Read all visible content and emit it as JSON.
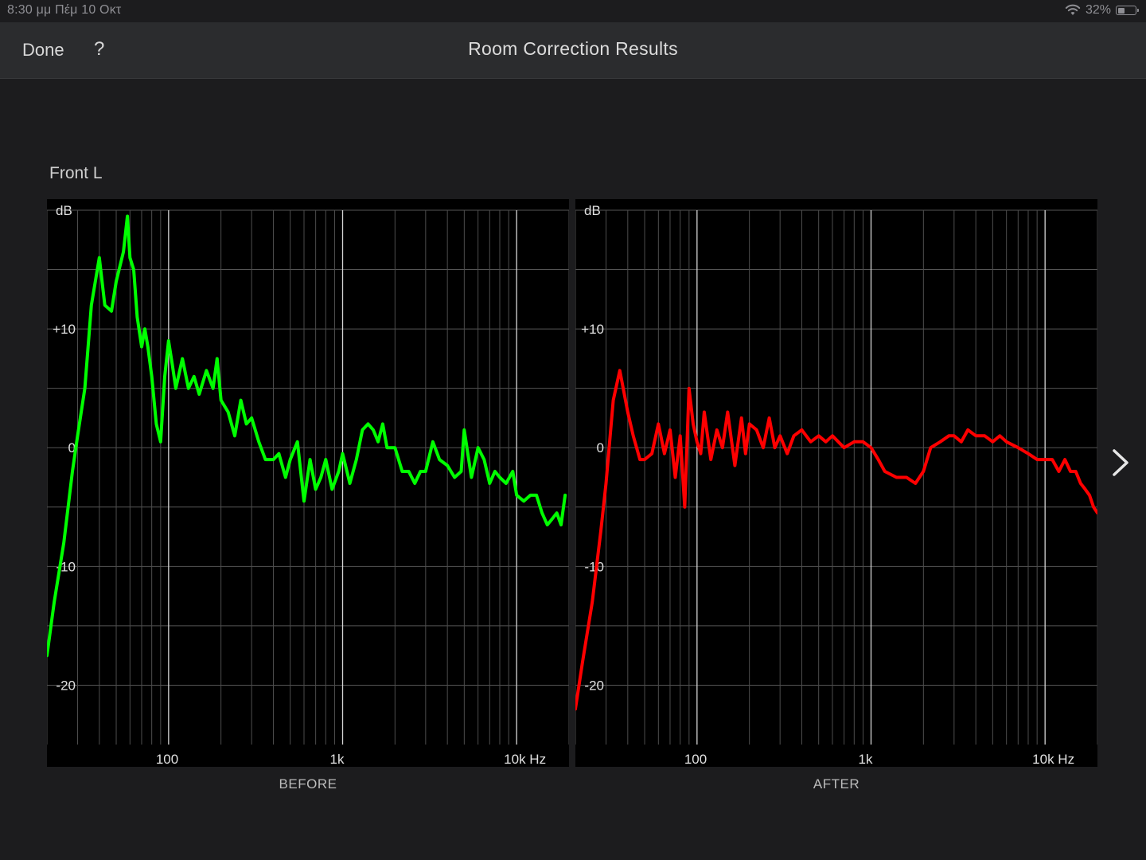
{
  "status_bar": {
    "time_date": "8:30 μμ  Πέμ 10 Οκτ",
    "battery": "32%",
    "wifi_icon": "wifi-icon",
    "battery_icon": "battery-icon"
  },
  "nav": {
    "done_label": "Done",
    "help_label": "?",
    "title": "Room Correction Results"
  },
  "channel_label": "Front L",
  "colors": {
    "before": "#00ff00",
    "after": "#ff0000",
    "background": "#1c1c1e",
    "navbar": "#2b2c2e"
  },
  "next_icon": "chevron-right-icon",
  "chart_data": [
    {
      "type": "line",
      "caption": "BEFORE",
      "ylabel": "dB",
      "x_scale": "log",
      "xlim": [
        20,
        20000
      ],
      "ylim": [
        -25,
        20
      ],
      "grid": true,
      "y_ticks": [
        {
          "value": 10,
          "label": "+10"
        },
        {
          "value": 0,
          "label": "0"
        },
        {
          "value": -10,
          "label": "-10"
        },
        {
          "value": -20,
          "label": "-20"
        }
      ],
      "x_ticks": [
        {
          "value": 100,
          "label": "100"
        },
        {
          "value": 1000,
          "label": "1k"
        },
        {
          "value": 10000,
          "label": "10k Hz"
        }
      ],
      "series": [
        {
          "color": "#00ff00",
          "x": [
            20,
            22,
            25,
            28,
            30,
            33,
            36,
            40,
            43,
            47,
            50,
            55,
            58,
            60,
            63,
            66,
            70,
            73,
            76,
            80,
            85,
            90,
            95,
            100,
            105,
            110,
            120,
            130,
            140,
            150,
            165,
            180,
            190,
            200,
            220,
            240,
            260,
            280,
            300,
            330,
            360,
            400,
            430,
            470,
            500,
            550,
            600,
            650,
            700,
            750,
            800,
            870,
            950,
            1000,
            1100,
            1200,
            1300,
            1400,
            1500,
            1600,
            1700,
            1800,
            2000,
            2200,
            2400,
            2600,
            2800,
            3000,
            3300,
            3600,
            4000,
            4400,
            4800,
            5000,
            5500,
            6000,
            6500,
            7000,
            7500,
            8000,
            8700,
            9500,
            10000,
            11000,
            12000,
            13000,
            14000,
            15000,
            16000,
            17000,
            18000,
            19000
          ],
          "y": [
            -17.5,
            -13,
            -8,
            -2,
            1,
            5,
            12,
            16,
            12,
            11.5,
            14,
            16.5,
            19.5,
            16,
            15,
            11,
            8.5,
            10,
            8.5,
            6,
            2,
            0.5,
            6,
            9,
            7,
            5,
            7.5,
            5,
            6,
            4.5,
            6.5,
            5,
            7.5,
            4,
            3,
            1,
            4,
            2,
            2.5,
            0.5,
            -1,
            -1,
            -0.5,
            -2.5,
            -1,
            0.5,
            -4.5,
            -1,
            -3.5,
            -2.5,
            -1,
            -3.5,
            -2,
            -0.5,
            -3,
            -1,
            1.5,
            2,
            1.5,
            0.5,
            2,
            0,
            0,
            -2,
            -2,
            -3,
            -2,
            -2,
            0.5,
            -1,
            -1.5,
            -2.5,
            -2,
            1.5,
            -2.5,
            0,
            -1,
            -3,
            -2,
            -2.5,
            -3,
            -2,
            -4,
            -4.5,
            -4,
            -4,
            -5.5,
            -6.5,
            -6,
            -5.5,
            -6.5,
            -4
          ]
        }
      ]
    },
    {
      "type": "line",
      "caption": "AFTER",
      "ylabel": "dB",
      "x_scale": "log",
      "xlim": [
        20,
        20000
      ],
      "ylim": [
        -25,
        20
      ],
      "grid": true,
      "y_ticks": [
        {
          "value": 10,
          "label": "+10"
        },
        {
          "value": 0,
          "label": "0"
        },
        {
          "value": -10,
          "label": "-10"
        },
        {
          "value": -20,
          "label": "-20"
        }
      ],
      "x_ticks": [
        {
          "value": 100,
          "label": "100"
        },
        {
          "value": 1000,
          "label": "1k"
        },
        {
          "value": 10000,
          "label": "10k Hz"
        }
      ],
      "series": [
        {
          "color": "#ff0000",
          "x": [
            20,
            22,
            25,
            28,
            30,
            33,
            36,
            40,
            43,
            47,
            50,
            55,
            60,
            65,
            70,
            75,
            80,
            85,
            90,
            95,
            100,
            105,
            110,
            120,
            130,
            140,
            150,
            165,
            180,
            190,
            200,
            220,
            240,
            260,
            280,
            300,
            330,
            360,
            400,
            450,
            500,
            550,
            600,
            700,
            800,
            900,
            1000,
            1100,
            1200,
            1400,
            1600,
            1800,
            2000,
            2200,
            2500,
            2800,
            3000,
            3300,
            3600,
            4000,
            4500,
            5000,
            5500,
            6000,
            7000,
            8000,
            9000,
            10000,
            11000,
            12000,
            13000,
            14000,
            15000,
            16000,
            17000,
            18000,
            19000,
            20000
          ],
          "y": [
            -22,
            -18,
            -13,
            -7,
            -3,
            4,
            6.5,
            3,
            1,
            -1,
            -1,
            -0.5,
            2,
            -0.5,
            1.5,
            -2.5,
            1,
            -5,
            5,
            2,
            0.5,
            -0.5,
            3,
            -1,
            1.5,
            0,
            3,
            -1.5,
            2.5,
            -0.5,
            2,
            1.5,
            0,
            2.5,
            0,
            1,
            -0.5,
            1,
            1.5,
            0.5,
            1,
            0.5,
            1,
            0,
            0.5,
            0.5,
            0,
            -1,
            -2,
            -2.5,
            -2.5,
            -3,
            -2,
            0,
            0.5,
            1,
            1,
            0.5,
            1.5,
            1,
            1,
            0.5,
            1,
            0.5,
            0,
            -0.5,
            -1,
            -1,
            -1,
            -2,
            -1,
            -2,
            -2,
            -3,
            -3.5,
            -4,
            -5,
            -5.5
          ]
        }
      ]
    }
  ],
  "captions": {
    "before": "BEFORE",
    "after": "AFTER"
  }
}
